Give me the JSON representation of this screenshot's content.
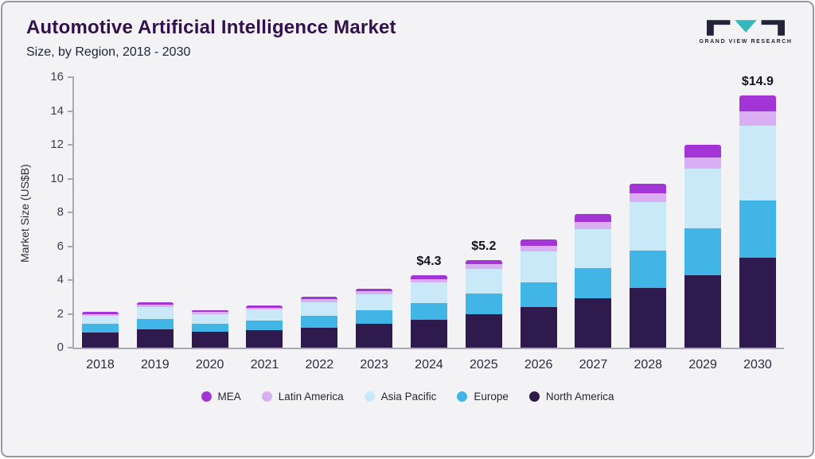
{
  "header": {
    "title": "Automotive Artificial Intelligence Market",
    "subtitle": "Size, by Region, 2018 - 2030",
    "logo_text": "GRAND VIEW RESEARCH"
  },
  "colors": {
    "logo_dark": "#23233a",
    "logo_teal": "#35b8bc",
    "axis": "#a9a9b4"
  },
  "chart_data": {
    "type": "bar",
    "stacked": true,
    "title": "Automotive Artificial Intelligence Market Size, by Region, 2018 - 2030",
    "xlabel": "",
    "ylabel": "Market Size (US$B)",
    "ylim": [
      0,
      16
    ],
    "yticks": [
      0,
      2,
      4,
      6,
      8,
      10,
      12,
      14,
      16
    ],
    "grid": false,
    "legend_position": "bottom",
    "categories": [
      "2018",
      "2019",
      "2020",
      "2021",
      "2022",
      "2023",
      "2024",
      "2025",
      "2026",
      "2027",
      "2028",
      "2029",
      "2030"
    ],
    "series": [
      {
        "name": "North America",
        "color": "#2e1a4d",
        "values": [
          0.9,
          1.1,
          0.92,
          1.02,
          1.2,
          1.4,
          1.65,
          2.0,
          2.4,
          2.9,
          3.55,
          4.3,
          5.3
        ]
      },
      {
        "name": "Europe",
        "color": "#41b6e6",
        "values": [
          0.5,
          0.6,
          0.5,
          0.58,
          0.7,
          0.82,
          1.0,
          1.2,
          1.45,
          1.8,
          2.2,
          2.75,
          3.4
        ]
      },
      {
        "name": "Asia Pacific",
        "color": "#c9e9f9",
        "values": [
          0.5,
          0.7,
          0.58,
          0.65,
          0.8,
          0.93,
          1.2,
          1.45,
          1.85,
          2.3,
          2.85,
          3.55,
          4.45
        ]
      },
      {
        "name": "Latin America",
        "color": "#d9aef2",
        "values": [
          0.1,
          0.15,
          0.1,
          0.12,
          0.15,
          0.17,
          0.22,
          0.27,
          0.33,
          0.42,
          0.52,
          0.65,
          0.85
        ]
      },
      {
        "name": "MEA",
        "color": "#a335d6",
        "values": [
          0.1,
          0.15,
          0.1,
          0.13,
          0.15,
          0.18,
          0.23,
          0.28,
          0.37,
          0.48,
          0.58,
          0.75,
          0.9
        ]
      }
    ],
    "legend": [
      "MEA",
      "Latin America",
      "Asia Pacific",
      "Europe",
      "North America"
    ],
    "totals_labels": [
      {
        "category": "2024",
        "text": "$4.3"
      },
      {
        "category": "2025",
        "text": "$5.2"
      },
      {
        "category": "2030",
        "text": "$14.9"
      }
    ]
  }
}
